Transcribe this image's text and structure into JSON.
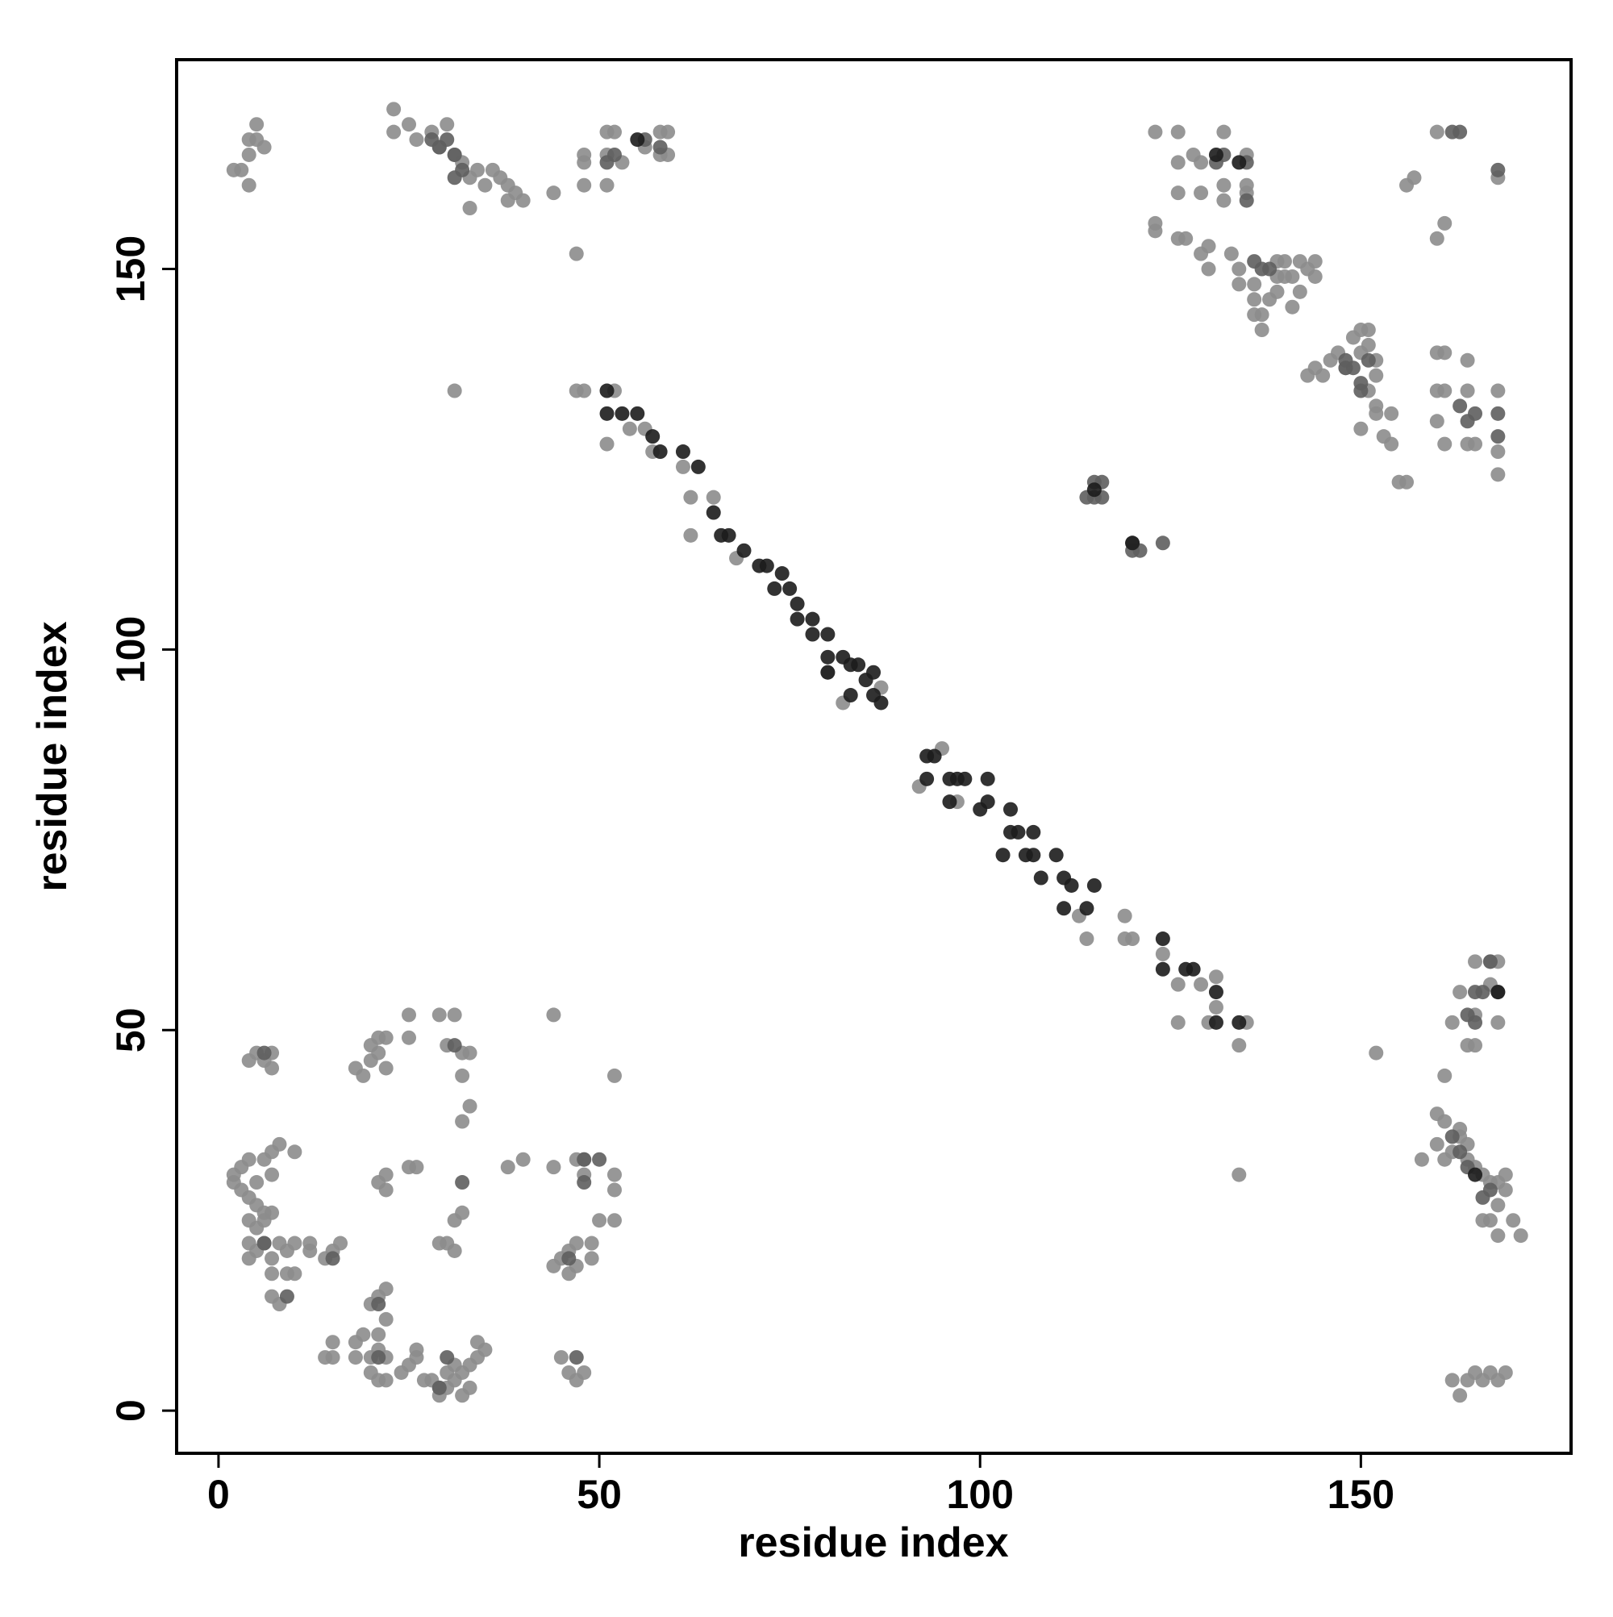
{
  "chart_data": {
    "type": "scatter",
    "x_label": "residue index",
    "y_label": "residue index",
    "xlim": [
      -5.5,
      177.6
    ],
    "ylim": [
      -5.6,
      177.5
    ],
    "xticks": [
      0,
      50,
      100,
      150
    ],
    "yticks": [
      0,
      50,
      100,
      150
    ],
    "grid": false,
    "series": [
      {
        "color": "#8c8c8c",
        "x": [
          2,
          2,
          3,
          3,
          4,
          4,
          5,
          5,
          6,
          6,
          7,
          7,
          8,
          10,
          4,
          5,
          6,
          7,
          4,
          4,
          5,
          6,
          7,
          8,
          9,
          10,
          12,
          12,
          7,
          9,
          10,
          7,
          8,
          14,
          15,
          16,
          4,
          5,
          6,
          7,
          7,
          18,
          19,
          20,
          21,
          22,
          20,
          21,
          22,
          25,
          25,
          29,
          31,
          30,
          32,
          32,
          33,
          33,
          32,
          21,
          22,
          22,
          25,
          26,
          29,
          30,
          31,
          31,
          32,
          20,
          21,
          22,
          22,
          21,
          18,
          19,
          15,
          14,
          15,
          18,
          20,
          21,
          22,
          20,
          21,
          22,
          24,
          25,
          26,
          26,
          27,
          28,
          29,
          29,
          30,
          30,
          31,
          31,
          32,
          32,
          33,
          33,
          34,
          34,
          35,
          44,
          38,
          40,
          44,
          44,
          45,
          46,
          46,
          47,
          47,
          49,
          49,
          48,
          47,
          48,
          52,
          52,
          52,
          50,
          52,
          45,
          46,
          47,
          48,
          134,
          152,
          161,
          160,
          161,
          158,
          160,
          161,
          162,
          163,
          164,
          165,
          166,
          167,
          168,
          169,
          169,
          168,
          167,
          166,
          168,
          170,
          171,
          163,
          164,
          162,
          164,
          165,
          165,
          167,
          167,
          168,
          168,
          162,
          163,
          164,
          165,
          166,
          167,
          168,
          169,
          163,
          165,
          2,
          3,
          4,
          4,
          5,
          5,
          4,
          6,
          23,
          23,
          25,
          26,
          28,
          29,
          30,
          31,
          32,
          33,
          34,
          35,
          36,
          37,
          38,
          38,
          39,
          40,
          44,
          33,
          47,
          48,
          48,
          48,
          51,
          51,
          51,
          52,
          53,
          56,
          58,
          58,
          59,
          59,
          31,
          47,
          48,
          52,
          51,
          54,
          56,
          57,
          61,
          62,
          65,
          62,
          68,
          80,
          82,
          87,
          95,
          92,
          97,
          113,
          114,
          119,
          119,
          120,
          124,
          126,
          126,
          129,
          130,
          131,
          134,
          135,
          131,
          123,
          126,
          126,
          126,
          128,
          129,
          129,
          132,
          132,
          132,
          135,
          135,
          135,
          123,
          123,
          126,
          127,
          129,
          130,
          130,
          133,
          134,
          134,
          136,
          136,
          136,
          137,
          137,
          138,
          139,
          139,
          139,
          140,
          140,
          141,
          141,
          142,
          142,
          143,
          144,
          144,
          143,
          144,
          145,
          146,
          147,
          148,
          149,
          150,
          150,
          151,
          151,
          152,
          152,
          151,
          152,
          150,
          152,
          153,
          154,
          154,
          155,
          156,
          160,
          160,
          161,
          161,
          160,
          161,
          156,
          157,
          160,
          161,
          160,
          164,
          164,
          164,
          165,
          168,
          168,
          168,
          168
        ],
        "values": [
          30,
          31,
          32,
          29,
          33,
          28,
          30,
          27,
          33,
          26,
          34,
          31,
          35,
          34,
          25,
          24,
          25,
          26,
          22,
          20,
          21,
          22,
          20,
          22,
          21,
          22,
          22,
          21,
          18,
          18,
          18,
          15,
          14,
          20,
          21,
          22,
          46,
          47,
          46,
          47,
          45,
          45,
          44,
          46,
          47,
          45,
          48,
          49,
          49,
          49,
          52,
          52,
          52,
          48,
          47,
          44,
          47,
          40,
          38,
          30,
          31,
          29,
          32,
          32,
          22,
          22,
          21,
          25,
          26,
          14,
          15,
          16,
          12,
          10,
          9,
          10,
          9,
          7,
          7,
          7,
          7,
          8,
          7,
          5,
          4,
          4,
          5,
          6,
          7,
          8,
          4,
          4,
          3,
          2,
          5,
          3,
          4,
          6,
          2,
          5,
          3,
          6,
          7,
          9,
          8,
          52,
          32,
          33,
          32,
          19,
          20,
          21,
          18,
          19,
          22,
          20,
          22,
          33,
          33,
          31,
          31,
          29,
          44,
          25,
          25,
          7,
          5,
          4,
          5,
          31,
          47,
          44,
          39,
          38,
          33,
          35,
          33,
          34,
          36,
          33,
          32,
          31,
          30,
          30,
          31,
          29,
          27,
          25,
          25,
          23,
          25,
          23,
          37,
          35,
          51,
          48,
          48,
          52,
          56,
          59,
          59,
          51,
          4,
          2,
          4,
          5,
          4,
          5,
          4,
          5,
          55,
          59,
          163,
          163,
          161,
          165,
          167,
          169,
          167,
          166,
          171,
          168,
          169,
          167,
          168,
          166,
          169,
          165,
          164,
          162,
          163,
          161,
          163,
          162,
          161,
          159,
          160,
          159,
          160,
          158,
          152,
          161,
          164,
          165,
          161,
          165,
          168,
          168,
          164,
          166,
          165,
          168,
          168,
          165,
          134,
          134,
          134,
          134,
          127,
          129,
          129,
          126,
          124,
          120,
          120,
          115,
          112,
          97,
          93,
          95,
          87,
          82,
          80,
          65,
          62,
          65,
          62,
          62,
          60,
          56,
          51,
          56,
          51,
          57,
          48,
          51,
          53,
          168,
          168,
          164,
          160,
          165,
          160,
          164,
          168,
          161,
          159,
          165,
          160,
          161,
          156,
          155,
          154,
          154,
          152,
          150,
          153,
          152,
          150,
          148,
          148,
          146,
          144,
          144,
          142,
          146,
          147,
          151,
          149,
          151,
          149,
          145,
          149,
          147,
          151,
          150,
          151,
          149,
          136,
          137,
          136,
          138,
          139,
          137,
          141,
          142,
          139,
          140,
          142,
          138,
          136,
          134,
          132,
          129,
          131,
          128,
          131,
          127,
          122,
          122,
          139,
          134,
          134,
          139,
          130,
          127,
          161,
          162,
          154,
          156,
          168,
          138,
          134,
          127,
          127,
          134,
          126,
          123,
          162
        ]
      },
      {
        "color": "#5e5e5e",
        "x": [
          6,
          6,
          9,
          15,
          21,
          21,
          29,
          30,
          31,
          32,
          47,
          48,
          50,
          46,
          31,
          29,
          30,
          32,
          28,
          31,
          48,
          51,
          52,
          56,
          58,
          114,
          115,
          115,
          116,
          116,
          120,
          120,
          121,
          124,
          149,
          150,
          150,
          148,
          163,
          164,
          165,
          168,
          168,
          168,
          163,
          162,
          164,
          166,
          167,
          164,
          165,
          166,
          165,
          168,
          167,
          162,
          163,
          135,
          135,
          131,
          132,
          148,
          151,
          137,
          136,
          138
        ],
        "values": [
          47,
          22,
          15,
          20,
          14,
          7,
          3,
          7,
          48,
          30,
          7,
          30,
          33,
          20,
          165,
          166,
          167,
          163,
          167,
          162,
          33,
          164,
          165,
          167,
          166,
          120,
          122,
          120,
          122,
          120,
          114,
          113,
          113,
          114,
          137,
          135,
          134,
          137,
          132,
          130,
          131,
          128,
          131,
          163,
          168,
          168,
          32,
          28,
          29,
          52,
          55,
          55,
          51,
          55,
          59,
          36,
          34,
          159,
          164,
          164,
          165,
          138,
          138,
          150,
          151,
          150
        ]
      },
      {
        "color": "#1c1c1c",
        "x": [
          51,
          51,
          53,
          55,
          57,
          58,
          61,
          63,
          65,
          66,
          67,
          69,
          71,
          72,
          74,
          73,
          75,
          76,
          76,
          78,
          78,
          80,
          80,
          82,
          83,
          84,
          85,
          86,
          87,
          83,
          86,
          80,
          93,
          94,
          93,
          96,
          97,
          98,
          101,
          96,
          100,
          101,
          104,
          104,
          105,
          107,
          103,
          106,
          107,
          110,
          108,
          111,
          112,
          115,
          114,
          111,
          124,
          124,
          127,
          128,
          131,
          131,
          134,
          55,
          115,
          120,
          131,
          134,
          165,
          168
        ],
        "values": [
          134,
          131,
          131,
          131,
          128,
          126,
          126,
          124,
          118,
          115,
          115,
          113,
          111,
          111,
          110,
          108,
          108,
          106,
          104,
          104,
          102,
          102,
          99,
          99,
          98,
          98,
          96,
          94,
          93,
          94,
          97,
          97,
          86,
          86,
          83,
          83,
          83,
          83,
          83,
          80,
          79,
          80,
          79,
          76,
          76,
          76,
          73,
          73,
          73,
          73,
          70,
          70,
          69,
          69,
          66,
          66,
          62,
          58,
          58,
          58,
          55,
          51,
          51,
          167,
          121,
          114,
          165,
          164,
          31,
          55
        ]
      }
    ]
  }
}
